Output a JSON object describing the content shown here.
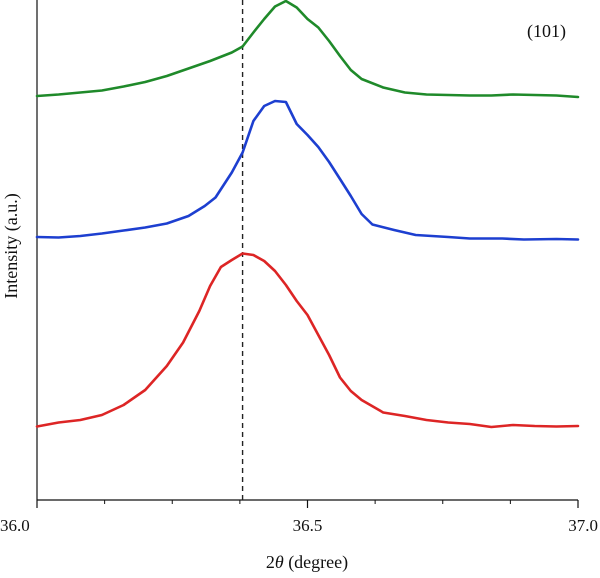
{
  "chart_data": {
    "type": "line",
    "xlabel_prefix": "2",
    "xlabel_symbol": "θ",
    "xlabel_suffix": " (degree)",
    "ylabel": "Intensity (a.u.)",
    "xlim": [
      36.0,
      37.0
    ],
    "x_ticks": [
      {
        "value": 36.0,
        "label": "36.0"
      },
      {
        "value": 36.5,
        "label": "36.5"
      },
      {
        "value": 37.0,
        "label": "37.0"
      }
    ],
    "x_minor_ticks": [
      36.125,
      36.25,
      36.375,
      36.625,
      36.75,
      36.875
    ],
    "y_ticks_shown": false,
    "grid": false,
    "annotation": "(101)",
    "reference_line": {
      "x": 36.38,
      "style": "dashed",
      "color": "#222222"
    },
    "series": [
      {
        "color": "#1f8a2a",
        "points": [
          [
            36.0,
            0.808
          ],
          [
            36.04,
            0.811
          ],
          [
            36.08,
            0.815
          ],
          [
            36.12,
            0.819
          ],
          [
            36.16,
            0.827
          ],
          [
            36.2,
            0.836
          ],
          [
            36.24,
            0.848
          ],
          [
            36.28,
            0.863
          ],
          [
            36.32,
            0.878
          ],
          [
            36.36,
            0.895
          ],
          [
            36.38,
            0.907
          ],
          [
            36.4,
            0.935
          ],
          [
            36.42,
            0.962
          ],
          [
            36.44,
            0.987
          ],
          [
            36.46,
            0.998
          ],
          [
            36.48,
            0.985
          ],
          [
            36.5,
            0.962
          ],
          [
            36.52,
            0.945
          ],
          [
            36.54,
            0.918
          ],
          [
            36.56,
            0.888
          ],
          [
            36.58,
            0.86
          ],
          [
            36.6,
            0.842
          ],
          [
            36.64,
            0.825
          ],
          [
            36.68,
            0.815
          ],
          [
            36.72,
            0.811
          ],
          [
            36.76,
            0.81
          ],
          [
            36.8,
            0.809
          ],
          [
            36.84,
            0.809
          ],
          [
            36.88,
            0.811
          ],
          [
            36.92,
            0.81
          ],
          [
            36.96,
            0.809
          ],
          [
            37.0,
            0.806
          ]
        ]
      },
      {
        "color": "#1d3fd0",
        "points": [
          [
            36.0,
            0.526
          ],
          [
            36.04,
            0.525
          ],
          [
            36.08,
            0.528
          ],
          [
            36.12,
            0.533
          ],
          [
            36.16,
            0.539
          ],
          [
            36.2,
            0.545
          ],
          [
            36.24,
            0.553
          ],
          [
            36.28,
            0.568
          ],
          [
            36.31,
            0.588
          ],
          [
            36.33,
            0.605
          ],
          [
            36.36,
            0.655
          ],
          [
            36.38,
            0.695
          ],
          [
            36.4,
            0.758
          ],
          [
            36.42,
            0.788
          ],
          [
            36.44,
            0.798
          ],
          [
            36.46,
            0.796
          ],
          [
            36.48,
            0.752
          ],
          [
            36.5,
            0.73
          ],
          [
            36.52,
            0.706
          ],
          [
            36.54,
            0.676
          ],
          [
            36.56,
            0.642
          ],
          [
            36.58,
            0.608
          ],
          [
            36.6,
            0.572
          ],
          [
            36.62,
            0.551
          ],
          [
            36.66,
            0.54
          ],
          [
            36.7,
            0.53
          ],
          [
            36.76,
            0.526
          ],
          [
            36.8,
            0.523
          ],
          [
            36.86,
            0.523
          ],
          [
            36.9,
            0.521
          ],
          [
            36.96,
            0.522
          ],
          [
            37.0,
            0.521
          ]
        ]
      },
      {
        "color": "#dd2525",
        "points": [
          [
            36.0,
            0.147
          ],
          [
            36.04,
            0.155
          ],
          [
            36.08,
            0.16
          ],
          [
            36.12,
            0.17
          ],
          [
            36.16,
            0.19
          ],
          [
            36.2,
            0.22
          ],
          [
            36.24,
            0.268
          ],
          [
            36.27,
            0.315
          ],
          [
            36.3,
            0.378
          ],
          [
            36.32,
            0.428
          ],
          [
            36.34,
            0.466
          ],
          [
            36.36,
            0.48
          ],
          [
            36.38,
            0.493
          ],
          [
            36.4,
            0.49
          ],
          [
            36.42,
            0.478
          ],
          [
            36.44,
            0.458
          ],
          [
            36.46,
            0.43
          ],
          [
            36.48,
            0.398
          ],
          [
            36.5,
            0.37
          ],
          [
            36.52,
            0.33
          ],
          [
            36.54,
            0.29
          ],
          [
            36.56,
            0.245
          ],
          [
            36.58,
            0.218
          ],
          [
            36.6,
            0.2
          ],
          [
            36.64,
            0.175
          ],
          [
            36.68,
            0.168
          ],
          [
            36.72,
            0.16
          ],
          [
            36.76,
            0.155
          ],
          [
            36.8,
            0.152
          ],
          [
            36.84,
            0.146
          ],
          [
            36.88,
            0.15
          ],
          [
            36.92,
            0.148
          ],
          [
            36.96,
            0.147
          ],
          [
            37.0,
            0.148
          ]
        ]
      }
    ]
  }
}
